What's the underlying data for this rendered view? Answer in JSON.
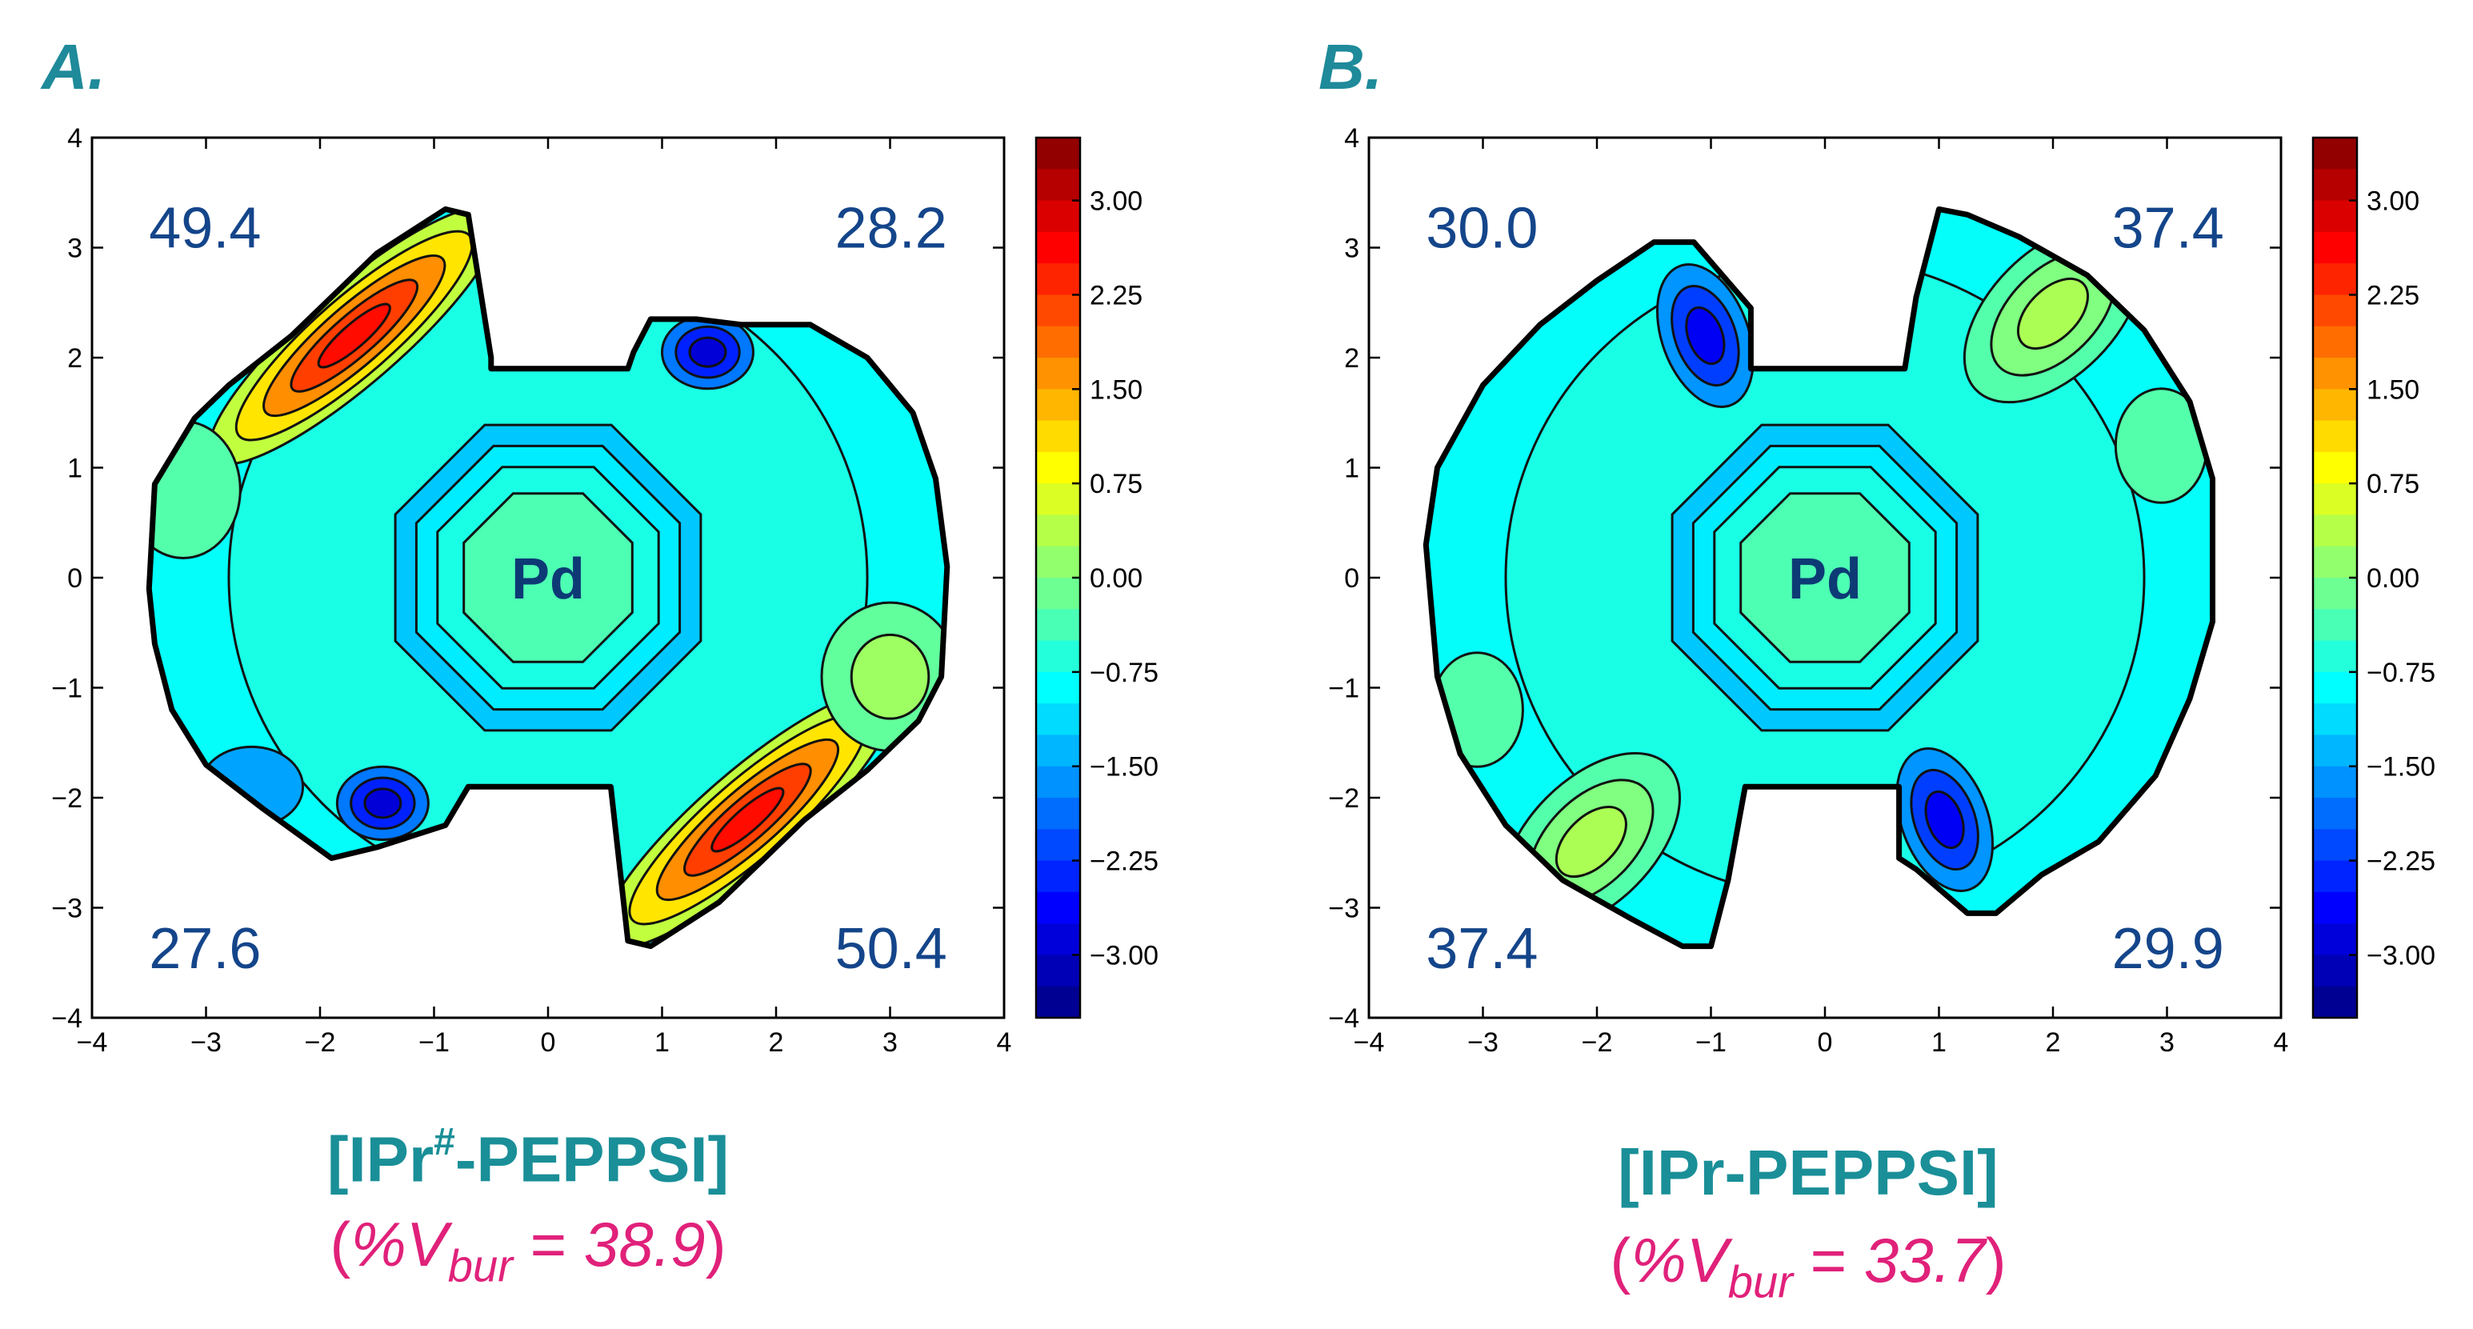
{
  "colors": {
    "label_teal": "#1a8f98",
    "panel_letter": "#1e8a9a",
    "vbur_magenta": "#e0217a",
    "quadrant_text": "#14458a",
    "pd_text": "#0d3a75"
  },
  "chart_data": [
    {
      "type": "heatmap",
      "panel_label": "A.",
      "compound": "[IPr#-PEPPSI]",
      "compound_base": "[IPr",
      "compound_sup": "#",
      "compound_rest": "-PEPPSI]",
      "vbur_label": "%V",
      "vbur_sub": "bur",
      "vbur_value": "38.9",
      "center_label": "Pd",
      "quadrants": {
        "top_left": "49.4",
        "top_right": "28.2",
        "bottom_left": "27.6",
        "bottom_right": "50.4"
      },
      "xlim": [
        -4,
        4
      ],
      "ylim": [
        -4,
        4
      ],
      "xticks": [
        -4,
        -3,
        -2,
        -1,
        0,
        1,
        2,
        3,
        4
      ],
      "yticks": [
        -4,
        -3,
        -2,
        -1,
        0,
        1,
        2,
        3,
        4
      ],
      "colorbar_range": [
        -3.5,
        3.5
      ],
      "colorbar_ticks": [
        "3.00",
        "2.25",
        "1.50",
        "0.75",
        "0.00",
        "−0.75",
        "−1.50",
        "−2.25",
        "−3.00"
      ],
      "outline": [
        [
          -3.5,
          -0.1
        ],
        [
          -3.45,
          0.85
        ],
        [
          -3.1,
          1.45
        ],
        [
          -2.8,
          1.75
        ],
        [
          -2.25,
          2.2
        ],
        [
          -1.5,
          2.95
        ],
        [
          -0.9,
          3.35
        ],
        [
          -0.7,
          3.3
        ],
        [
          -0.5,
          2.0
        ],
        [
          -0.5,
          1.9
        ],
        [
          0.7,
          1.9
        ],
        [
          0.75,
          2.05
        ],
        [
          0.9,
          2.35
        ],
        [
          1.3,
          2.35
        ],
        [
          1.7,
          2.3
        ],
        [
          2.3,
          2.3
        ],
        [
          2.8,
          2.0
        ],
        [
          3.2,
          1.5
        ],
        [
          3.4,
          0.9
        ],
        [
          3.5,
          0.1
        ],
        [
          3.45,
          -0.9
        ],
        [
          3.25,
          -1.3
        ],
        [
          2.8,
          -1.75
        ],
        [
          2.25,
          -2.2
        ],
        [
          1.5,
          -2.95
        ],
        [
          0.9,
          -3.35
        ],
        [
          0.7,
          -3.3
        ],
        [
          0.55,
          -1.9
        ],
        [
          -0.7,
          -1.9
        ],
        [
          -0.9,
          -2.25
        ],
        [
          -1.5,
          -2.45
        ],
        [
          -1.9,
          -2.55
        ],
        [
          -2.5,
          -2.1
        ],
        [
          -3.0,
          -1.7
        ],
        [
          -3.3,
          -1.2
        ],
        [
          -3.45,
          -0.6
        ]
      ],
      "regions": [
        {
          "kind": "ellipse",
          "cx": -1.7,
          "cy": 2.2,
          "rx": 1.65,
          "ry": 0.42,
          "angle": -41,
          "levels": [
            0.45,
            1.05,
            1.65,
            2.2,
            2.55
          ]
        },
        {
          "kind": "ellipse",
          "cx": 1.75,
          "cy": -2.2,
          "rx": 1.65,
          "ry": 0.42,
          "angle": -41,
          "levels": [
            0.45,
            1.05,
            1.65,
            2.2,
            2.55
          ]
        },
        {
          "kind": "ellipse",
          "cx": 1.4,
          "cy": 2.05,
          "rx": 0.4,
          "ry": 0.32,
          "angle": 0,
          "levels": [
            -1.8,
            -2.4,
            -2.9
          ]
        },
        {
          "kind": "ellipse",
          "cx": -1.45,
          "cy": -2.05,
          "rx": 0.4,
          "ry": 0.32,
          "angle": 0,
          "levels": [
            -1.8,
            -2.4,
            -2.9
          ]
        },
        {
          "kind": "ellipse",
          "cx": 3.0,
          "cy": -0.9,
          "rx": 0.6,
          "ry": 0.65,
          "angle": 0,
          "levels": [
            -0.2,
            0.2
          ]
        },
        {
          "kind": "ellipse",
          "cx": -3.2,
          "cy": 0.8,
          "rx": 0.5,
          "ry": 0.6,
          "angle": 0,
          "levels": [
            -0.3
          ]
        },
        {
          "kind": "ellipse",
          "cx": -2.6,
          "cy": -1.9,
          "rx": 0.45,
          "ry": 0.35,
          "angle": 0,
          "levels": [
            -1.5
          ]
        }
      ]
    },
    {
      "type": "heatmap",
      "panel_label": "B.",
      "compound": "[IPr-PEPPSI]",
      "compound_base": "[IPr-PEPPSI]",
      "compound_sup": "",
      "compound_rest": "",
      "vbur_label": "%V",
      "vbur_sub": "bur",
      "vbur_value": "33.7",
      "center_label": "Pd",
      "quadrants": {
        "top_left": "30.0",
        "top_right": "37.4",
        "bottom_left": "37.4",
        "bottom_right": "29.9"
      },
      "xlim": [
        -4,
        4
      ],
      "ylim": [
        -4,
        4
      ],
      "xticks": [
        -4,
        -3,
        -2,
        -1,
        0,
        1,
        2,
        3,
        4
      ],
      "yticks": [
        -4,
        -3,
        -2,
        -1,
        0,
        1,
        2,
        3,
        4
      ],
      "colorbar_range": [
        -3.5,
        3.5
      ],
      "colorbar_ticks": [
        "3.00",
        "2.25",
        "1.50",
        "0.75",
        "0.00",
        "−0.75",
        "−1.50",
        "−2.25",
        "−3.00"
      ],
      "outline": [
        [
          -3.5,
          0.3
        ],
        [
          -3.4,
          1.0
        ],
        [
          -3.0,
          1.75
        ],
        [
          -2.5,
          2.3
        ],
        [
          -2.0,
          2.7
        ],
        [
          -1.5,
          3.05
        ],
        [
          -1.15,
          3.05
        ],
        [
          -0.65,
          2.45
        ],
        [
          -0.65,
          1.9
        ],
        [
          0.7,
          1.9
        ],
        [
          0.8,
          2.55
        ],
        [
          1.0,
          3.35
        ],
        [
          1.25,
          3.3
        ],
        [
          1.7,
          3.1
        ],
        [
          2.3,
          2.75
        ],
        [
          2.8,
          2.25
        ],
        [
          3.2,
          1.6
        ],
        [
          3.4,
          0.9
        ],
        [
          3.4,
          -0.4
        ],
        [
          3.2,
          -1.1
        ],
        [
          2.9,
          -1.8
        ],
        [
          2.4,
          -2.4
        ],
        [
          1.9,
          -2.7
        ],
        [
          1.5,
          -3.05
        ],
        [
          1.25,
          -3.05
        ],
        [
          0.8,
          -2.65
        ],
        [
          0.65,
          -2.55
        ],
        [
          0.65,
          -1.9
        ],
        [
          -0.7,
          -1.9
        ],
        [
          -0.85,
          -2.75
        ],
        [
          -1.0,
          -3.35
        ],
        [
          -1.25,
          -3.35
        ],
        [
          -1.7,
          -3.1
        ],
        [
          -2.3,
          -2.75
        ],
        [
          -2.8,
          -2.25
        ],
        [
          -3.2,
          -1.6
        ],
        [
          -3.4,
          -0.9
        ],
        [
          -3.45,
          -0.3
        ]
      ],
      "regions": [
        {
          "kind": "ellipse",
          "cx": -1.05,
          "cy": 2.2,
          "rx": 0.38,
          "ry": 0.65,
          "angle": -20,
          "levels": [
            -1.6,
            -2.2,
            -2.7
          ]
        },
        {
          "kind": "ellipse",
          "cx": 1.05,
          "cy": -2.2,
          "rx": 0.38,
          "ry": 0.65,
          "angle": -20,
          "levels": [
            -1.6,
            -2.2,
            -2.7
          ]
        },
        {
          "kind": "ellipse",
          "cx": 2.0,
          "cy": 2.4,
          "rx": 0.95,
          "ry": 0.55,
          "angle": -45,
          "levels": [
            -0.3,
            0.0,
            0.3
          ]
        },
        {
          "kind": "ellipse",
          "cx": -2.05,
          "cy": -2.4,
          "rx": 0.95,
          "ry": 0.55,
          "angle": -45,
          "levels": [
            -0.3,
            0.0,
            0.3
          ]
        },
        {
          "kind": "ellipse",
          "cx": 2.95,
          "cy": 1.2,
          "rx": 0.4,
          "ry": 0.5,
          "angle": 0,
          "levels": [
            -0.3
          ]
        },
        {
          "kind": "ellipse",
          "cx": -3.05,
          "cy": -1.2,
          "rx": 0.4,
          "ry": 0.5,
          "angle": 0,
          "levels": [
            -0.3
          ]
        }
      ]
    }
  ]
}
